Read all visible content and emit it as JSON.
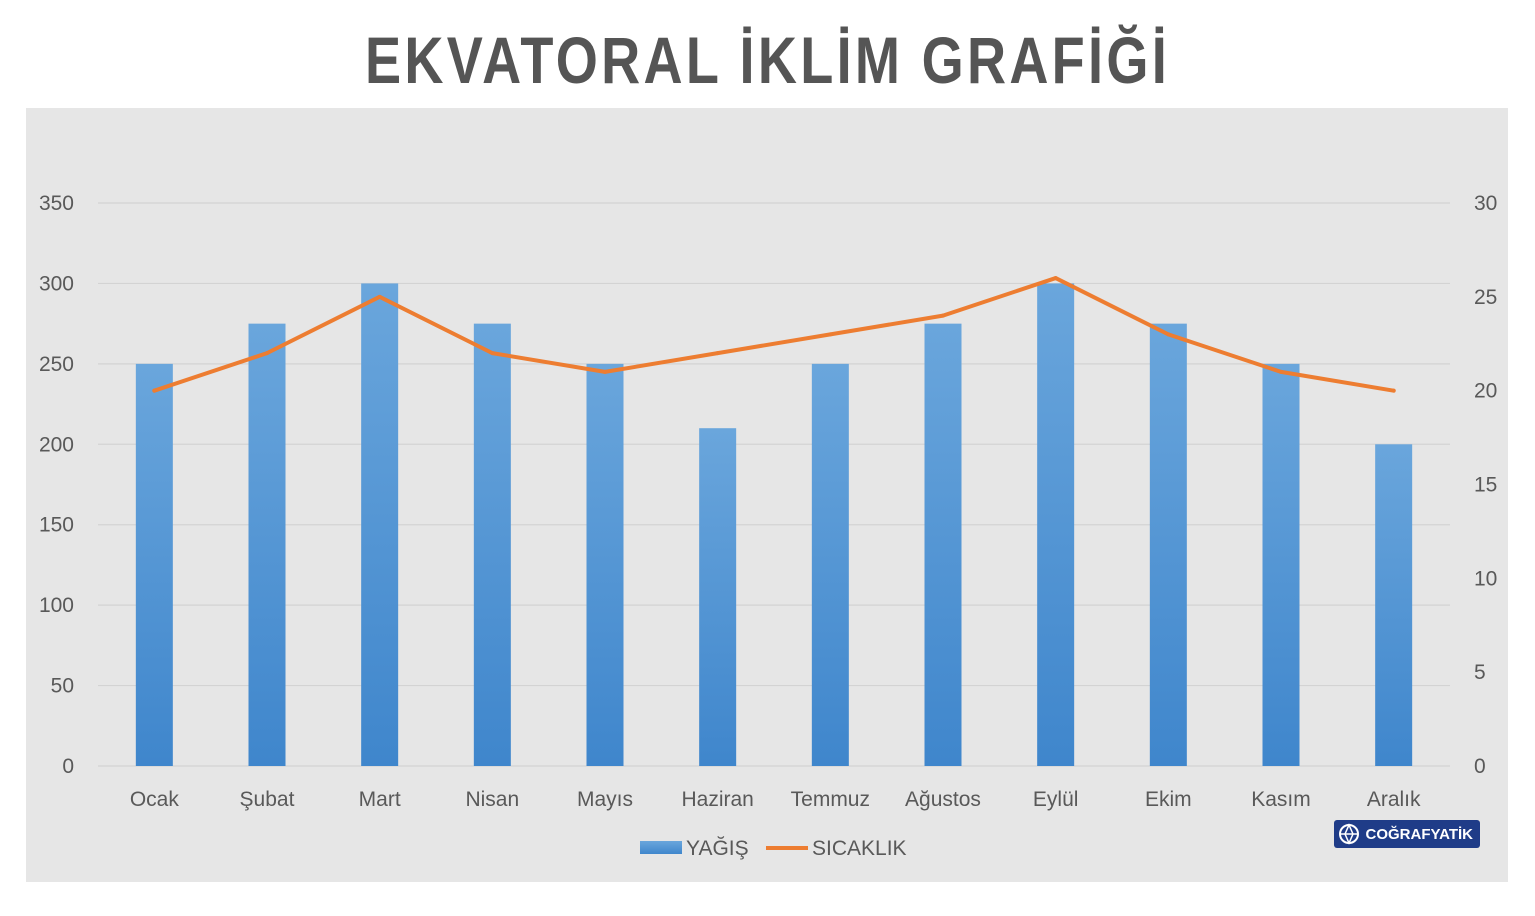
{
  "page": {
    "title": "EKVATORAL İKLİM GRAFİĞİ",
    "brand": "COĞRAFYATİK"
  },
  "colors": {
    "bar": "#5b9bd5",
    "bar_top": "#6aa6dc",
    "bar_bottom": "#3f86cc",
    "line": "#ed7d31",
    "panel_bg": "#e6e6e6",
    "grid": "#d3d3d3",
    "axis_text": "#595959",
    "title": "#555555"
  },
  "chart_data": {
    "type": "bar",
    "categories": [
      "Ocak",
      "Şubat",
      "Mart",
      "Nisan",
      "Mayıs",
      "Haziran",
      "Temmuz",
      "Ağustos",
      "Eylül",
      "Ekim",
      "Kasım",
      "Aralık"
    ],
    "series": [
      {
        "name": "YAĞIŞ",
        "type": "bar",
        "axis": "left",
        "values": [
          250,
          275,
          300,
          275,
          250,
          210,
          250,
          275,
          300,
          275,
          250,
          200
        ]
      },
      {
        "name": "SICAKLIK",
        "type": "line",
        "axis": "right",
        "values": [
          20,
          22,
          25,
          22,
          21,
          22,
          23,
          24,
          26,
          23,
          21,
          20
        ]
      }
    ],
    "y_left": {
      "min": 0,
      "max": 350,
      "ticks": [
        "0",
        "50",
        "100",
        "150",
        "200",
        "250",
        "300",
        "350"
      ]
    },
    "y_right": {
      "min": 0,
      "max": 30,
      "ticks": [
        "0",
        "5",
        "10",
        "15",
        "20",
        "25",
        "30"
      ]
    },
    "grid": true,
    "legend_position": "bottom"
  }
}
